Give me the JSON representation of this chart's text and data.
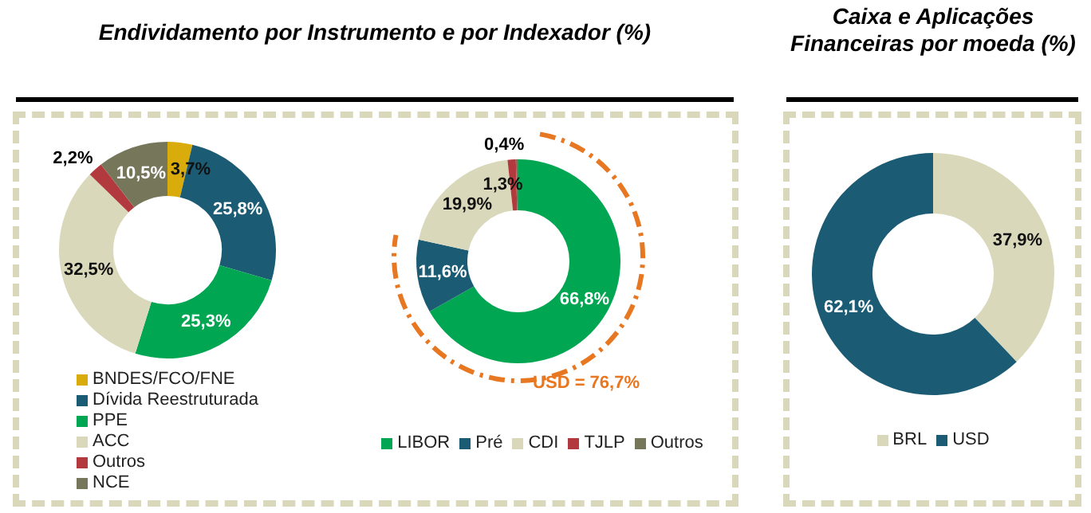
{
  "chart_data": [
    {
      "type": "donut",
      "title": "Endividamento por Instrumento e por Indexador (%)",
      "categories": [
        "BNDES/FCO/FNE",
        "Dívida Reestruturada",
        "PPE",
        "ACC",
        "Outros",
        "NCE"
      ],
      "values": [
        3.7,
        25.8,
        25.3,
        32.5,
        2.2,
        10.5
      ],
      "colors": [
        "#d9ab0b",
        "#1b5c74",
        "#00a651",
        "#d9d8bb",
        "#b23a3e",
        "#76765a"
      ],
      "value_labels": [
        "3,7%",
        "25,8%",
        "25,3%",
        "32,5%",
        "2,2%",
        "10,5%"
      ],
      "legend": "bottom left"
    },
    {
      "type": "donut",
      "categories": [
        "LIBOR",
        "Pré",
        "CDI",
        "TJLP",
        "Outros"
      ],
      "values": [
        66.8,
        11.6,
        19.9,
        1.3,
        0.4
      ],
      "colors": [
        "#00a651",
        "#1b5c74",
        "#d9d8bb",
        "#b23a3e",
        "#76765a"
      ],
      "value_labels": [
        "66,8%",
        "11,6%",
        "19,9%",
        "1,3%",
        "0,4%"
      ],
      "legend": "bottom",
      "annotations": [
        "USD = 76,7%"
      ]
    },
    {
      "type": "donut",
      "title": "Caixa e Aplicações Financeiras por moeda (%)",
      "categories": [
        "BRL",
        "USD"
      ],
      "values": [
        37.9,
        62.1
      ],
      "colors": [
        "#d9d8bb",
        "#1b5c74"
      ],
      "value_labels": [
        "37,9%",
        "62,1%"
      ],
      "legend": "bottom"
    }
  ]
}
